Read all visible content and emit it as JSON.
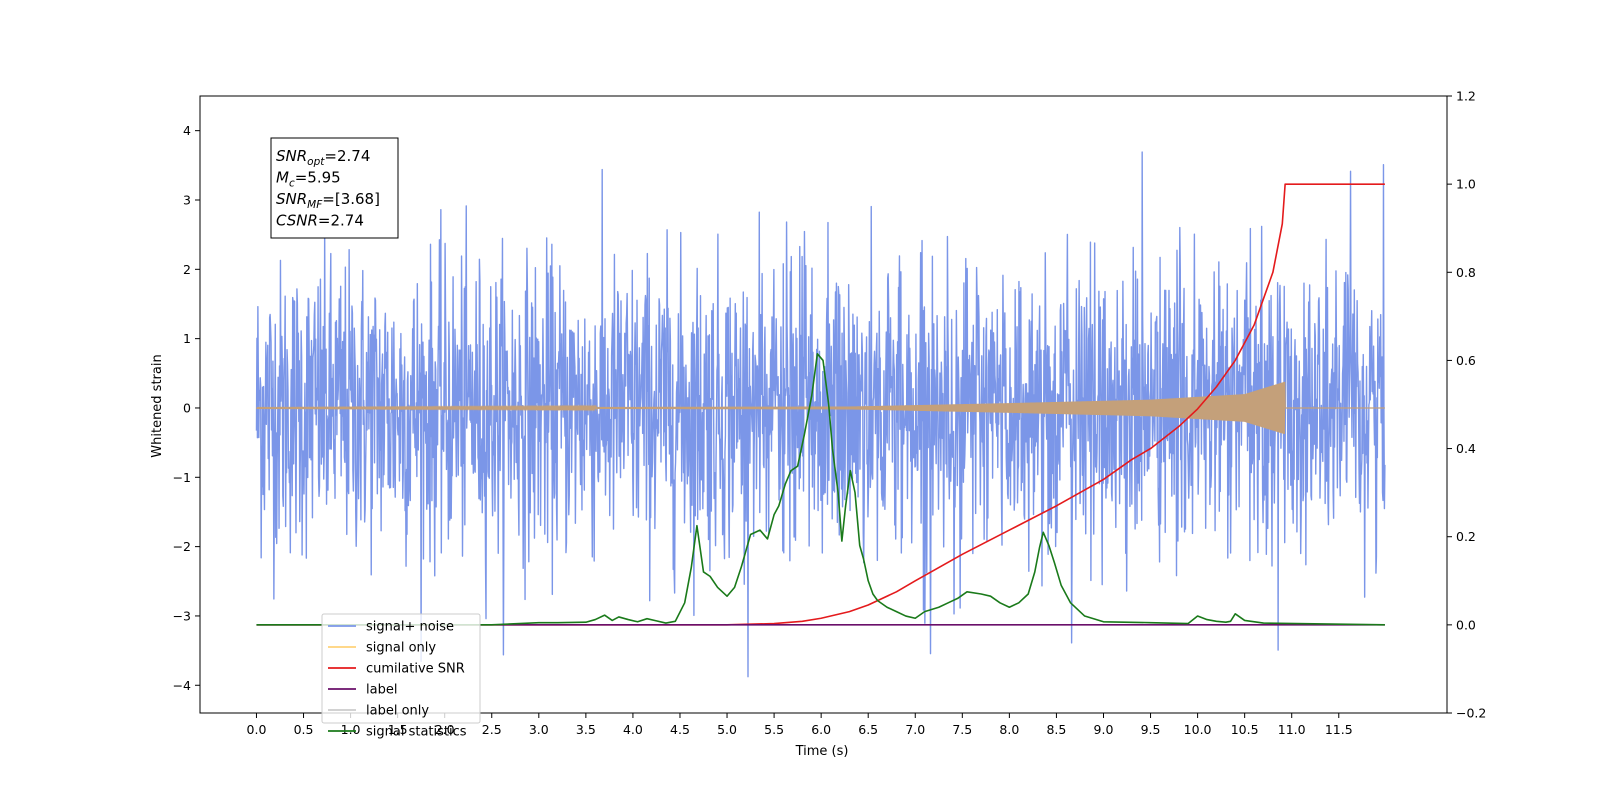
{
  "chart_data": {
    "type": "line",
    "xlabel": "Time (s)",
    "ylabel": "Whitened strain",
    "xlim": [
      -0.6,
      12.65
    ],
    "ylim": [
      -4.4,
      4.5
    ],
    "y2lim": [
      -0.2,
      1.2
    ],
    "x_ticks": [
      0.0,
      0.5,
      1.0,
      1.5,
      2.0,
      2.5,
      3.0,
      3.5,
      4.0,
      4.5,
      5.0,
      5.5,
      6.0,
      6.5,
      7.0,
      7.5,
      8.0,
      8.5,
      9.0,
      9.5,
      10.0,
      10.5,
      11.0,
      11.5
    ],
    "x_tick_labels": [
      "0.0",
      "0.5",
      "1.0",
      "1.5",
      "2.0",
      "2.5",
      "3.0",
      "3.5",
      "4.0",
      "4.5",
      "5.0",
      "5.5",
      "6.0",
      "6.5",
      "7.0",
      "7.5",
      "8.0",
      "8.5",
      "9.0",
      "9.5",
      "10.0",
      "10.5",
      "11.0",
      "11.5"
    ],
    "y_ticks": [
      -4,
      -3,
      -2,
      -1,
      0,
      1,
      2,
      3,
      4
    ],
    "y_tick_labels": [
      "−4",
      "−3",
      "−2",
      "−1",
      "0",
      "1",
      "2",
      "3",
      "4"
    ],
    "y2_ticks": [
      -0.2,
      0.0,
      0.2,
      0.4,
      0.6,
      0.8,
      1.0,
      1.2
    ],
    "y2_tick_labels": [
      "−0.2",
      "0.0",
      "0.2",
      "0.4",
      "0.6",
      "0.8",
      "1.0",
      "1.2"
    ],
    "grid": false,
    "legend_position": "lower-left",
    "annotations": [
      {
        "main": "SNR",
        "sub": "opt",
        "rest": "=2.74"
      },
      {
        "main": "M",
        "sub": "c",
        "rest": "=5.95"
      },
      {
        "main": "SNR",
        "sub": "MF",
        "rest": "=[3.68]"
      },
      {
        "main": "CSNR",
        "sub": "",
        "rest": "=2.74"
      }
    ],
    "series": [
      {
        "name": "signal+ noise",
        "axis": "left",
        "color": "#7b96e8",
        "kind": "noise",
        "x_range": [
          0.0,
          11.99
        ],
        "approx_std": 1.05,
        "approx_max": 4.1,
        "approx_min": -4.0
      },
      {
        "name": "signal only",
        "axis": "left",
        "color": "#c4a07a",
        "kind": "chirp",
        "x_range": [
          0.0,
          11.99
        ],
        "chirp_end": 10.93,
        "amplitude_envelope": [
          [
            0.0,
            0.004
          ],
          [
            6.3,
            0.02
          ],
          [
            8.0,
            0.07
          ],
          [
            9.5,
            0.12
          ],
          [
            10.5,
            0.2
          ],
          [
            10.93,
            0.38
          ]
        ]
      },
      {
        "name": "cumilative SNR",
        "axis": "right",
        "color": "#e41a1c",
        "x": [
          0.0,
          5.0,
          5.5,
          5.8,
          6.0,
          6.3,
          6.5,
          6.8,
          7.0,
          7.5,
          8.0,
          8.5,
          9.0,
          9.3,
          9.5,
          9.8,
          10.0,
          10.2,
          10.4,
          10.6,
          10.8,
          10.9,
          10.93,
          11.99
        ],
        "values": [
          0.0,
          0.0,
          0.003,
          0.008,
          0.015,
          0.03,
          0.045,
          0.075,
          0.1,
          0.16,
          0.215,
          0.27,
          0.33,
          0.375,
          0.4,
          0.45,
          0.49,
          0.54,
          0.6,
          0.68,
          0.8,
          0.91,
          1.0,
          1.0
        ]
      },
      {
        "name": "label",
        "axis": "right",
        "color": "#6a0f6a",
        "x": [
          0.0,
          11.99
        ],
        "values": [
          0.0,
          0.0
        ]
      },
      {
        "name": "label only",
        "axis": "right",
        "color": "#cccccc",
        "legend_only": true,
        "x": [],
        "values": []
      },
      {
        "name": "signal statistics",
        "axis": "right",
        "color": "#1a7a1a",
        "x": [
          0.0,
          2.5,
          3.0,
          3.2,
          3.5,
          3.6,
          3.7,
          3.78,
          3.85,
          3.95,
          4.05,
          4.15,
          4.25,
          4.35,
          4.45,
          4.55,
          4.62,
          4.68,
          4.75,
          4.82,
          4.9,
          5.0,
          5.08,
          5.15,
          5.25,
          5.35,
          5.43,
          5.5,
          5.55,
          5.62,
          5.68,
          5.75,
          5.82,
          5.9,
          5.96,
          6.02,
          6.08,
          6.12,
          6.18,
          6.22,
          6.26,
          6.31,
          6.36,
          6.41,
          6.45,
          6.5,
          6.55,
          6.6,
          6.7,
          6.8,
          6.9,
          7.0,
          7.1,
          7.25,
          7.35,
          7.45,
          7.55,
          7.7,
          7.8,
          7.9,
          8.0,
          8.1,
          8.2,
          8.27,
          8.32,
          8.36,
          8.42,
          8.48,
          8.55,
          8.65,
          8.8,
          9.0,
          9.5,
          9.9,
          10.0,
          10.1,
          10.2,
          10.3,
          10.35,
          10.4,
          10.5,
          10.7,
          11.99
        ],
        "values": [
          0.0,
          0.0,
          0.005,
          0.005,
          0.006,
          0.012,
          0.022,
          0.01,
          0.018,
          0.012,
          0.007,
          0.014,
          0.009,
          0.004,
          0.008,
          0.05,
          0.13,
          0.225,
          0.12,
          0.11,
          0.085,
          0.065,
          0.085,
          0.13,
          0.205,
          0.215,
          0.195,
          0.25,
          0.27,
          0.32,
          0.35,
          0.36,
          0.43,
          0.52,
          0.615,
          0.6,
          0.5,
          0.4,
          0.3,
          0.19,
          0.27,
          0.35,
          0.3,
          0.18,
          0.15,
          0.1,
          0.07,
          0.055,
          0.04,
          0.03,
          0.02,
          0.015,
          0.03,
          0.04,
          0.05,
          0.06,
          0.075,
          0.07,
          0.065,
          0.05,
          0.04,
          0.05,
          0.07,
          0.12,
          0.175,
          0.21,
          0.18,
          0.14,
          0.09,
          0.05,
          0.02,
          0.007,
          0.005,
          0.003,
          0.02,
          0.012,
          0.008,
          0.006,
          0.008,
          0.025,
          0.01,
          0.004,
          0.0
        ]
      }
    ]
  }
}
